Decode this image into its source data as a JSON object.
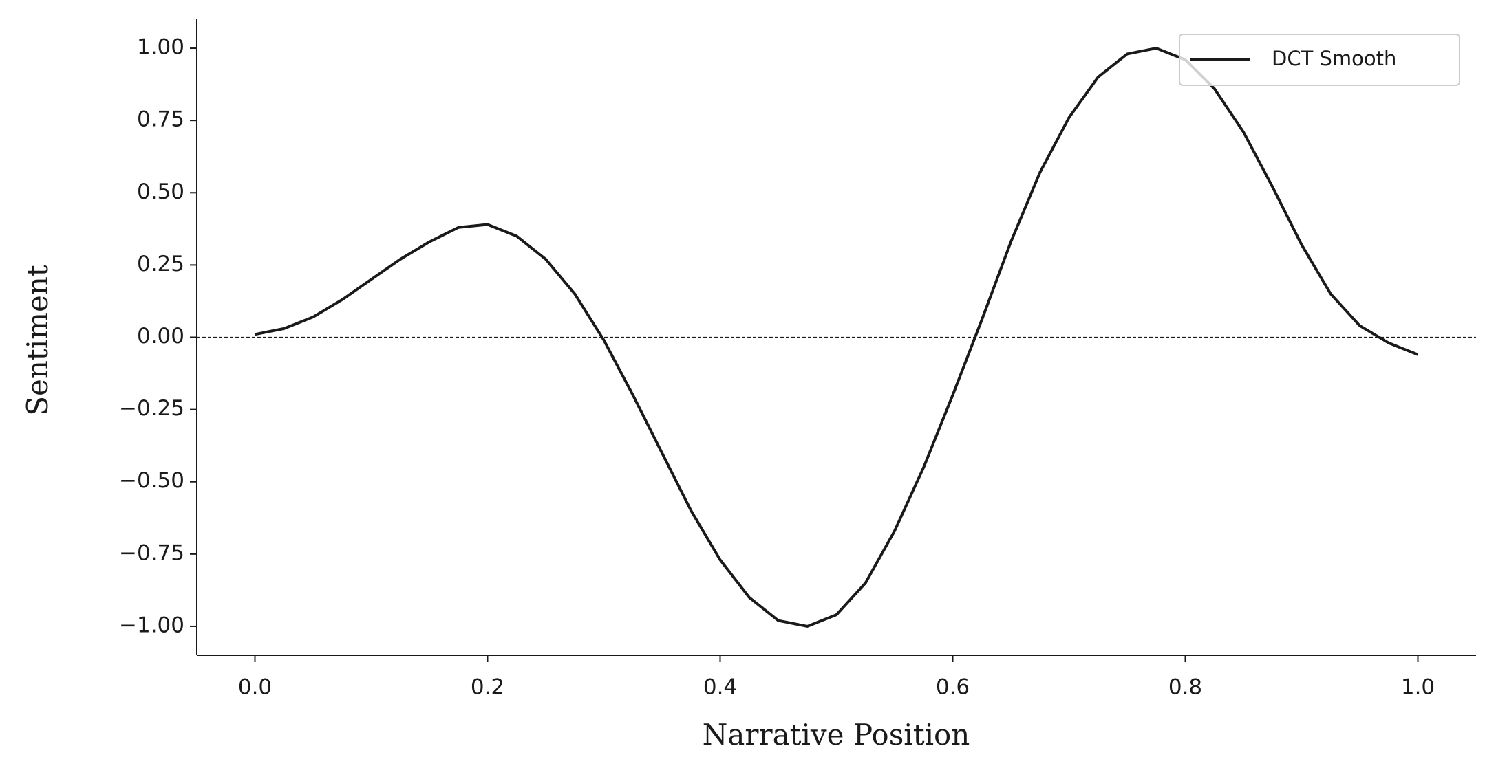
{
  "chart_data": {
    "type": "line",
    "xlabel": "Narrative Position",
    "ylabel": "Sentiment",
    "x": [
      0,
      0.025,
      0.05,
      0.075,
      0.1,
      0.125,
      0.15,
      0.175,
      0.2,
      0.225,
      0.25,
      0.275,
      0.3,
      0.325,
      0.35,
      0.375,
      0.4,
      0.425,
      0.45,
      0.475,
      0.5,
      0.525,
      0.55,
      0.575,
      0.6,
      0.625,
      0.65,
      0.675,
      0.7,
      0.725,
      0.75,
      0.775,
      0.8,
      0.825,
      0.85,
      0.875,
      0.9,
      0.925,
      0.95,
      0.975,
      1.0
    ],
    "series": [
      {
        "name": "DCT Smooth",
        "color": "#1a1a1a",
        "values": [
          0.01,
          0.03,
          0.07,
          0.13,
          0.2,
          0.27,
          0.33,
          0.38,
          0.39,
          0.35,
          0.27,
          0.15,
          -0.01,
          -0.2,
          -0.4,
          -0.6,
          -0.77,
          -0.9,
          -0.98,
          -1.0,
          -0.96,
          -0.85,
          -0.67,
          -0.45,
          -0.2,
          0.06,
          0.33,
          0.57,
          0.76,
          0.9,
          0.98,
          1.0,
          0.96,
          0.86,
          0.71,
          0.52,
          0.32,
          0.15,
          0.04,
          -0.02,
          -0.06
        ]
      }
    ],
    "xlim": [
      -0.05,
      1.05
    ],
    "ylim": [
      -1.1,
      1.1
    ],
    "xticks": [
      {
        "value": 0,
        "label": "0.0"
      },
      {
        "value": 0.2,
        "label": "0.2"
      },
      {
        "value": 0.4,
        "label": "0.4"
      },
      {
        "value": 0.6,
        "label": "0.6"
      },
      {
        "value": 0.8,
        "label": "0.8"
      },
      {
        "value": 1,
        "label": "1.0"
      }
    ],
    "yticks": [
      {
        "value": 1,
        "label": "1.00"
      },
      {
        "value": 0.75,
        "label": "0.75"
      },
      {
        "value": 0.5,
        "label": "0.50"
      },
      {
        "value": 0.25,
        "label": "0.25"
      },
      {
        "value": 0,
        "label": "0.00"
      },
      {
        "value": -0.25,
        "label": "−0.25"
      },
      {
        "value": -0.5,
        "label": "−0.50"
      },
      {
        "value": -0.75,
        "label": "−0.75"
      },
      {
        "value": -1,
        "label": "−1.00"
      }
    ],
    "reference_line": 0,
    "grid": false,
    "legend": "upper right"
  }
}
